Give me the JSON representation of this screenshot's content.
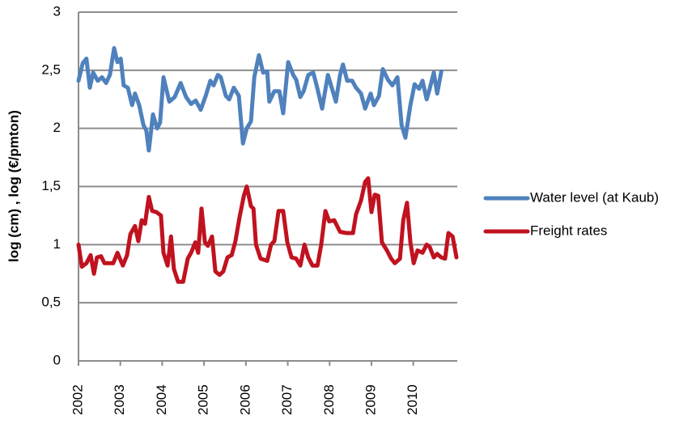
{
  "chart_data": {
    "type": "line",
    "y_label": "log (cm) , log (€/pmton)",
    "xlim": [
      2002,
      2011.05
    ],
    "xticks": [
      2002,
      2003,
      2004,
      2005,
      2006,
      2007,
      2008,
      2009,
      2010
    ],
    "ylim": [
      0,
      3
    ],
    "yticks": [
      0,
      {
        "value": 0.5,
        "label": "0,5"
      },
      1,
      {
        "value": 1.5,
        "label": "1,5"
      },
      2,
      {
        "value": 2.5,
        "label": "2,5"
      },
      3
    ],
    "grid": true,
    "legend": "right",
    "series": [
      {
        "name": "Water level (at Kaub)",
        "color": "#4f81bd",
        "x": [
          2002.0,
          2002.1,
          2002.19,
          2002.27,
          2002.35,
          2002.46,
          2002.56,
          2002.66,
          2002.75,
          2002.85,
          2002.93,
          2003.01,
          2003.08,
          2003.18,
          2003.28,
          2003.35,
          2003.45,
          2003.55,
          2003.62,
          2003.68,
          2003.78,
          2003.88,
          2003.95,
          2004.03,
          2004.17,
          2004.3,
          2004.44,
          2004.57,
          2004.69,
          2004.8,
          2004.92,
          2005.04,
          2005.15,
          2005.23,
          2005.33,
          2005.4,
          2005.52,
          2005.6,
          2005.71,
          2005.83,
          2005.93,
          2006.02,
          2006.12,
          2006.2,
          2006.31,
          2006.41,
          2006.51,
          2006.56,
          2006.68,
          2006.8,
          2006.89,
          2007.01,
          2007.13,
          2007.2,
          2007.3,
          2007.38,
          2007.49,
          2007.61,
          2007.71,
          2007.82,
          2007.96,
          2008.05,
          2008.15,
          2008.25,
          2008.32,
          2008.42,
          2008.54,
          2008.63,
          2008.75,
          2008.85,
          2008.98,
          2009.06,
          2009.18,
          2009.27,
          2009.39,
          2009.5,
          2009.62,
          2009.72,
          2009.81,
          2009.93,
          2010.03,
          2010.14,
          2010.22,
          2010.32,
          2010.39,
          2010.49,
          2010.57,
          2010.67
        ],
        "values": [
          2.41,
          2.56,
          2.6,
          2.35,
          2.48,
          2.41,
          2.44,
          2.39,
          2.46,
          2.69,
          2.57,
          2.6,
          2.37,
          2.35,
          2.2,
          2.3,
          2.2,
          2.03,
          1.98,
          1.81,
          2.12,
          2.0,
          2.05,
          2.44,
          2.23,
          2.27,
          2.39,
          2.27,
          2.21,
          2.24,
          2.16,
          2.28,
          2.41,
          2.37,
          2.46,
          2.44,
          2.28,
          2.25,
          2.35,
          2.28,
          1.87,
          2.0,
          2.06,
          2.44,
          2.63,
          2.48,
          2.49,
          2.23,
          2.32,
          2.32,
          2.13,
          2.57,
          2.46,
          2.42,
          2.27,
          2.32,
          2.46,
          2.48,
          2.34,
          2.17,
          2.46,
          2.35,
          2.23,
          2.46,
          2.55,
          2.41,
          2.41,
          2.35,
          2.3,
          2.17,
          2.3,
          2.2,
          2.28,
          2.51,
          2.42,
          2.37,
          2.44,
          2.03,
          1.92,
          2.2,
          2.38,
          2.34,
          2.41,
          2.25,
          2.34,
          2.48,
          2.3,
          2.49
        ]
      },
      {
        "name": "Freight rates",
        "color": "#c0121f",
        "x": [
          2002.0,
          2002.08,
          2002.19,
          2002.29,
          2002.37,
          2002.44,
          2002.54,
          2002.62,
          2002.83,
          2002.93,
          2003.06,
          2003.16,
          2003.24,
          2003.35,
          2003.43,
          2003.51,
          2003.59,
          2003.68,
          2003.76,
          2003.86,
          2003.97,
          2004.03,
          2004.13,
          2004.21,
          2004.28,
          2004.38,
          2004.5,
          2004.61,
          2004.69,
          2004.79,
          2004.86,
          2004.94,
          2005.02,
          2005.09,
          2005.19,
          2005.27,
          2005.37,
          2005.46,
          2005.56,
          2005.66,
          2005.75,
          2005.85,
          2005.95,
          2006.02,
          2006.12,
          2006.18,
          2006.24,
          2006.35,
          2006.51,
          2006.6,
          2006.68,
          2006.78,
          2006.89,
          2006.99,
          2007.09,
          2007.2,
          2007.3,
          2007.4,
          2007.49,
          2007.59,
          2007.71,
          2007.8,
          2007.9,
          2007.99,
          2008.11,
          2008.25,
          2008.4,
          2008.56,
          2008.63,
          2008.75,
          2008.85,
          2008.92,
          2009.0,
          2009.08,
          2009.16,
          2009.25,
          2009.37,
          2009.47,
          2009.56,
          2009.68,
          2009.76,
          2009.85,
          2009.93,
          2010.01,
          2010.1,
          2010.22,
          2010.32,
          2010.39,
          2010.49,
          2010.57,
          2010.67,
          2010.76,
          2010.84,
          2010.94,
          2011.03
        ],
        "values": [
          1.0,
          0.81,
          0.84,
          0.91,
          0.75,
          0.89,
          0.9,
          0.84,
          0.84,
          0.93,
          0.82,
          0.91,
          1.09,
          1.16,
          1.03,
          1.21,
          1.18,
          1.41,
          1.29,
          1.28,
          1.25,
          0.93,
          0.82,
          1.07,
          0.79,
          0.68,
          0.68,
          0.88,
          0.93,
          1.02,
          0.93,
          1.31,
          1.02,
          0.99,
          1.07,
          0.77,
          0.74,
          0.77,
          0.89,
          0.91,
          1.03,
          1.24,
          1.42,
          1.5,
          1.33,
          1.31,
          1.0,
          0.88,
          0.86,
          1.0,
          1.03,
          1.29,
          1.29,
          1.02,
          0.89,
          0.88,
          0.82,
          1.0,
          0.89,
          0.82,
          0.82,
          1.0,
          1.29,
          1.2,
          1.21,
          1.11,
          1.1,
          1.1,
          1.26,
          1.38,
          1.54,
          1.57,
          1.28,
          1.43,
          1.42,
          1.02,
          0.95,
          0.88,
          0.84,
          0.88,
          1.21,
          1.36,
          1.02,
          0.84,
          0.95,
          0.93,
          1.0,
          0.98,
          0.89,
          0.92,
          0.89,
          0.88,
          1.1,
          1.07,
          0.89
        ]
      }
    ]
  }
}
